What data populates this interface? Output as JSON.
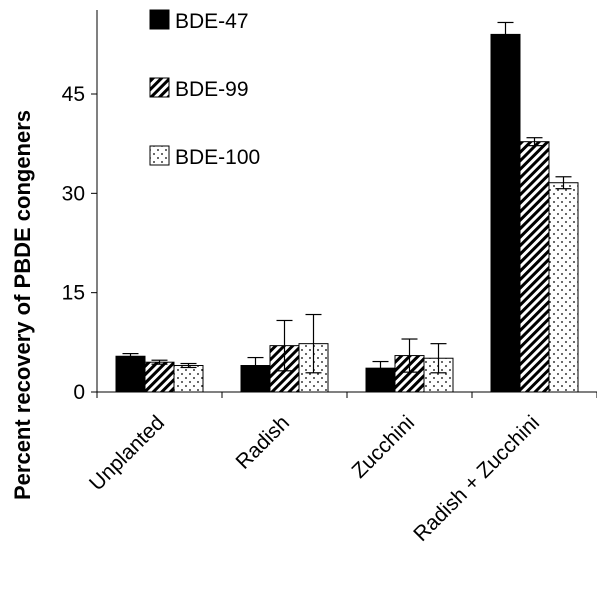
{
  "chart_data": {
    "type": "bar",
    "title": "",
    "xlabel": "",
    "ylabel": "Percent recovery of PBDE congeners",
    "ylim": [
      0,
      55
    ],
    "yticks": [
      0,
      15,
      30,
      45
    ],
    "grid": false,
    "legend_position": "top-left",
    "categories": [
      "Unplanted",
      "Radish",
      "Zucchini",
      "Radish + Zucchini"
    ],
    "series": [
      {
        "name": "BDE-47",
        "pattern": "solid",
        "color": "#000000",
        "values": [
          5.4,
          4.0,
          3.6,
          54.0
        ],
        "errors": [
          0.4,
          1.2,
          1.0,
          1.8
        ]
      },
      {
        "name": "BDE-99",
        "pattern": "diagonal",
        "color": "#000000",
        "values": [
          4.5,
          7.0,
          5.5,
          37.8
        ],
        "errors": [
          0.3,
          3.8,
          2.5,
          0.6
        ]
      },
      {
        "name": "BDE-100",
        "pattern": "dotted",
        "color": "#000000",
        "values": [
          4.0,
          7.3,
          5.1,
          31.6
        ],
        "errors": [
          0.3,
          4.4,
          2.2,
          0.9
        ]
      }
    ]
  }
}
